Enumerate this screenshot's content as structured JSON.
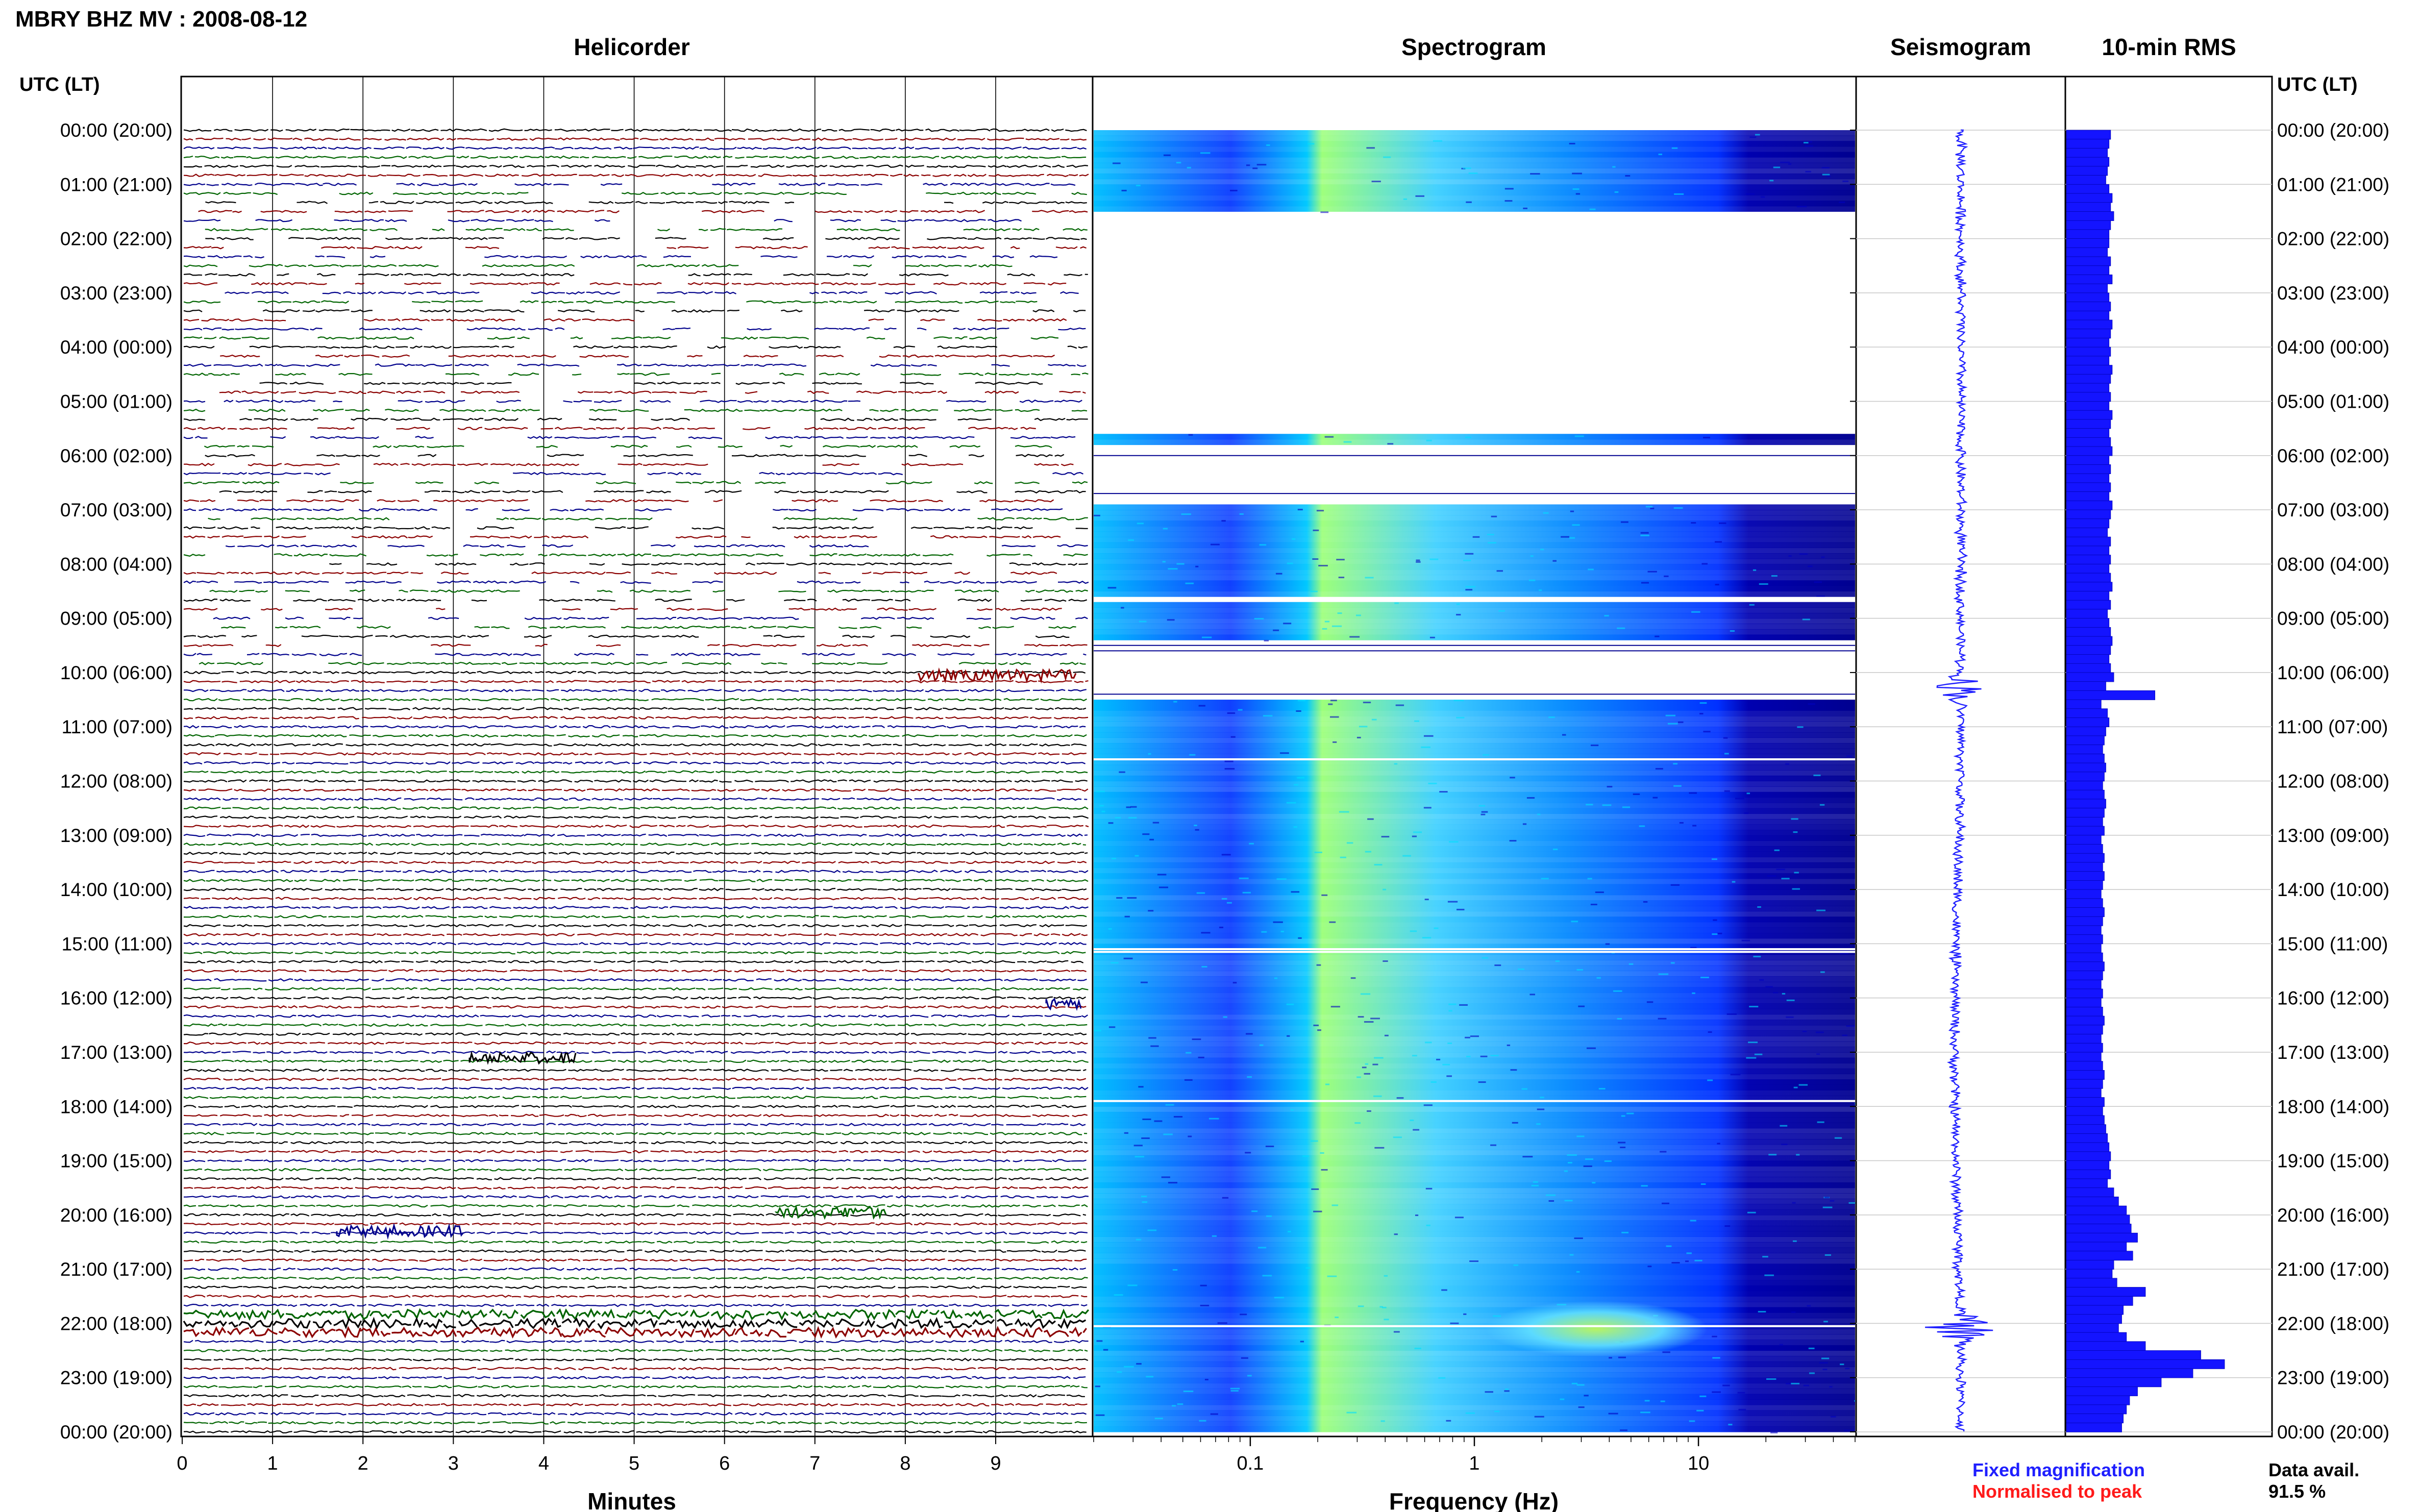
{
  "title": "MBRY BHZ MV : 2008-08-12",
  "panels": {
    "helicorder": "Helicorder",
    "spectrogram": "Spectrogram",
    "seismogram": "Seismogram",
    "rms": "10-min RMS"
  },
  "axis_header_left": "UTC (LT)",
  "axis_header_right": "UTC (LT)",
  "time_labels": [
    "00:00 (20:00)",
    "01:00 (21:00)",
    "02:00 (22:00)",
    "03:00 (23:00)",
    "04:00 (00:00)",
    "05:00 (01:00)",
    "06:00 (02:00)",
    "07:00 (03:00)",
    "08:00 (04:00)",
    "09:00 (05:00)",
    "10:00 (06:00)",
    "11:00 (07:00)",
    "12:00 (08:00)",
    "13:00 (09:00)",
    "14:00 (10:00)",
    "15:00 (11:00)",
    "16:00 (12:00)",
    "17:00 (13:00)",
    "18:00 (14:00)",
    "19:00 (15:00)",
    "20:00 (16:00)",
    "21:00 (17:00)",
    "22:00 (18:00)",
    "23:00 (19:00)",
    "00:00 (20:00)"
  ],
  "helicorder_xticks": [
    "0",
    "1",
    "2",
    "3",
    "4",
    "5",
    "6",
    "7",
    "8",
    "9"
  ],
  "helicorder_xlabel": "Minutes",
  "spectrogram_xticks": [
    "0.1",
    "1",
    "10"
  ],
  "spectrogram_xlabel": "Frequency (Hz)",
  "legend": {
    "fixed": "Fixed magnification",
    "normalised": "Normalised to peak",
    "fixed_color": "#1f1fff",
    "normalised_color": "#ff1a1a"
  },
  "data_avail_label": "Data avail.",
  "data_avail_value": "91.5 %",
  "trace_colors": [
    "#000000",
    "#8b0000",
    "#00008b",
    "#006400"
  ],
  "chart_data": [
    {
      "type": "line",
      "panel": "Helicorder",
      "x_range_minutes": [
        0,
        10
      ],
      "rows_per_hour": 6,
      "gappy_hours": [
        1,
        10
      ],
      "high_amplitude_hours": [
        21.7,
        22.3
      ]
    },
    {
      "type": "heatmap",
      "panel": "Spectrogram",
      "x_scale": "log",
      "x_range_hz": [
        0.02,
        50
      ],
      "colormap": [
        "#000080",
        "#0000ff",
        "#00bfff",
        "#80ff80"
      ],
      "data_gap_hours": [
        [
          1.5,
          5.6
        ],
        [
          5.8,
          6.9
        ],
        [
          8.6,
          8.7
        ],
        [
          9.4,
          10.5
        ]
      ],
      "energy_band_hz": [
        0.2,
        1.0
      ],
      "event_hour": 22.1,
      "event_band_hz": [
        1.5,
        8
      ]
    },
    {
      "type": "line",
      "panel": "Seismogram",
      "event_hours": [
        10.3,
        22.1
      ]
    },
    {
      "type": "bar",
      "panel": "10-min RMS",
      "orientation": "horizontal",
      "bin_minutes": 10,
      "values": [
        0.28,
        0.27,
        0.26,
        0.27,
        0.26,
        0.25,
        0.27,
        0.29,
        0.28,
        0.3,
        0.28,
        0.27,
        0.27,
        0.26,
        0.28,
        0.27,
        0.29,
        0.26,
        0.27,
        0.28,
        0.27,
        0.29,
        0.28,
        0.27,
        0.28,
        0.27,
        0.29,
        0.28,
        0.27,
        0.28,
        0.27,
        0.29,
        0.28,
        0.27,
        0.28,
        0.29,
        0.27,
        0.28,
        0.27,
        0.28,
        0.27,
        0.29,
        0.28,
        0.27,
        0.26,
        0.28,
        0.27,
        0.28,
        0.27,
        0.28,
        0.29,
        0.27,
        0.28,
        0.26,
        0.27,
        0.28,
        0.29,
        0.28,
        0.27,
        0.28,
        0.3,
        0.25,
        0.56,
        0.22,
        0.26,
        0.27,
        0.25,
        0.24,
        0.23,
        0.24,
        0.25,
        0.24,
        0.23,
        0.24,
        0.25,
        0.24,
        0.23,
        0.24,
        0.22,
        0.23,
        0.24,
        0.23,
        0.24,
        0.23,
        0.22,
        0.23,
        0.24,
        0.23,
        0.22,
        0.23,
        0.22,
        0.23,
        0.24,
        0.23,
        0.22,
        0.23,
        0.22,
        0.23,
        0.24,
        0.23,
        0.22,
        0.23,
        0.22,
        0.23,
        0.24,
        0.23,
        0.22,
        0.24,
        0.23,
        0.24,
        0.25,
        0.26,
        0.27,
        0.28,
        0.27,
        0.28,
        0.26,
        0.3,
        0.33,
        0.38,
        0.4,
        0.41,
        0.45,
        0.38,
        0.42,
        0.3,
        0.29,
        0.32,
        0.5,
        0.42,
        0.36,
        0.35,
        0.33,
        0.38,
        0.5,
        0.85,
        1.0,
        0.8,
        0.6,
        0.45,
        0.4,
        0.38,
        0.36,
        0.35
      ]
    }
  ]
}
